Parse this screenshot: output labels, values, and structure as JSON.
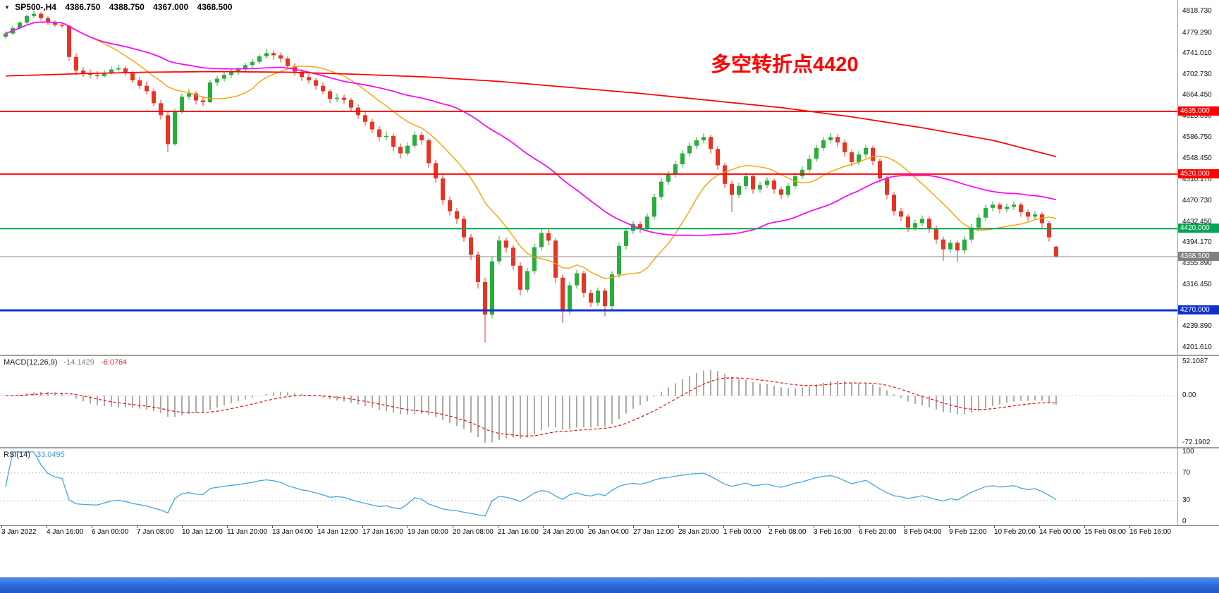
{
  "header": {
    "symbol": "SP500-,H4",
    "open": "4386.750",
    "high": "4388.750",
    "low": "4367.000",
    "close": "4368.500"
  },
  "annotation": {
    "text": "多空转折点4420",
    "color": "#ff0000"
  },
  "chart_data": {
    "type": "candlestick",
    "symbol": "SP500-",
    "timeframe": "H4",
    "colors": {
      "up": "#27ae3b",
      "down": "#ea3323",
      "macd_hist": "#ababab",
      "macd_signal": "#ff0000",
      "rsi_line": "#42a5e5"
    },
    "price_axis": {
      "ticks": [
        "4818.730",
        "4779.290",
        "4741.010",
        "4702.730",
        "4664.450",
        "4625.890",
        "4586.750",
        "4548.450",
        "4510.170",
        "4470.730",
        "4432.450",
        "4394.170",
        "4355.890",
        "4316.450",
        "4239.890",
        "4201.610"
      ]
    },
    "levels": [
      {
        "price": 4635.0,
        "label": "4635.000",
        "color": "#ff0000",
        "width": 2
      },
      {
        "price": 4520.0,
        "label": "4520.000",
        "color": "#ff0000",
        "width": 2
      },
      {
        "price": 4420.0,
        "label": "4420.000",
        "color": "#00a651",
        "width": 2
      },
      {
        "price": 4270.0,
        "label": "4270.000",
        "color": "#1032cc",
        "width": 3
      }
    ],
    "current_price": {
      "value": 4368.5,
      "label": "4368.500",
      "color": "#808080"
    },
    "candles": [
      [
        4772,
        4782,
        4768,
        4778
      ],
      [
        4778,
        4792,
        4775,
        4788
      ],
      [
        4788,
        4801,
        4785,
        4798
      ],
      [
        4798,
        4813,
        4795,
        4810
      ],
      [
        4810,
        4818.7,
        4806,
        4814
      ],
      [
        4814,
        4817,
        4802,
        4806
      ],
      [
        4806,
        4810,
        4794,
        4798
      ],
      [
        4798,
        4802,
        4790,
        4794
      ],
      [
        4794,
        4799,
        4788,
        4792
      ],
      [
        4792,
        4794,
        4728,
        4735
      ],
      [
        4735,
        4742,
        4702,
        4710
      ],
      [
        4710,
        4716,
        4698,
        4705
      ],
      [
        4705,
        4712,
        4696,
        4702
      ],
      [
        4702,
        4709,
        4694,
        4700
      ],
      [
        4700,
        4711,
        4697,
        4706
      ],
      [
        4706,
        4717,
        4702,
        4712
      ],
      [
        4712,
        4720,
        4708,
        4714
      ],
      [
        4714,
        4718,
        4700,
        4705
      ],
      [
        4705,
        4709,
        4687,
        4692
      ],
      [
        4692,
        4698,
        4676,
        4682
      ],
      [
        4682,
        4690,
        4666,
        4672
      ],
      [
        4672,
        4677,
        4644,
        4650
      ],
      [
        4650,
        4656,
        4620,
        4628
      ],
      [
        4628,
        4634,
        4560,
        4575
      ],
      [
        4575,
        4640,
        4572,
        4635
      ],
      [
        4635,
        4668,
        4630,
        4662
      ],
      [
        4662,
        4676,
        4656,
        4668
      ],
      [
        4668,
        4672,
        4648,
        4655
      ],
      [
        4655,
        4663,
        4645,
        4652
      ],
      [
        4652,
        4692,
        4650,
        4688
      ],
      [
        4688,
        4700,
        4682,
        4695
      ],
      [
        4695,
        4707,
        4690,
        4702
      ],
      [
        4702,
        4712,
        4696,
        4708
      ],
      [
        4708,
        4716,
        4702,
        4712
      ],
      [
        4712,
        4724,
        4707,
        4720
      ],
      [
        4720,
        4731,
        4715,
        4726
      ],
      [
        4726,
        4740,
        4722,
        4736
      ],
      [
        4736,
        4750,
        4731,
        4742
      ],
      [
        4742,
        4747,
        4730,
        4738
      ],
      [
        4738,
        4743,
        4725,
        4732
      ],
      [
        4732,
        4736,
        4712,
        4718
      ],
      [
        4718,
        4723,
        4701,
        4708
      ],
      [
        4708,
        4713,
        4691,
        4698
      ],
      [
        4698,
        4704,
        4686,
        4692
      ],
      [
        4692,
        4697,
        4675,
        4682
      ],
      [
        4682,
        4688,
        4666,
        4672
      ],
      [
        4672,
        4676,
        4650,
        4658
      ],
      [
        4658,
        4668,
        4652,
        4660
      ],
      [
        4660,
        4666,
        4649,
        4656
      ],
      [
        4656,
        4660,
        4635,
        4642
      ],
      [
        4642,
        4648,
        4621,
        4628
      ],
      [
        4628,
        4634,
        4609,
        4616
      ],
      [
        4616,
        4621,
        4595,
        4602
      ],
      [
        4602,
        4608,
        4580,
        4588
      ],
      [
        4588,
        4598,
        4582,
        4590
      ],
      [
        4590,
        4594,
        4562,
        4570
      ],
      [
        4570,
        4576,
        4549,
        4558
      ],
      [
        4558,
        4578,
        4554,
        4572
      ],
      [
        4572,
        4598,
        4568,
        4592
      ],
      [
        4592,
        4597,
        4574,
        4582
      ],
      [
        4582,
        4586,
        4532,
        4540
      ],
      [
        4540,
        4546,
        4504,
        4512
      ],
      [
        4512,
        4518,
        4464,
        4472
      ],
      [
        4472,
        4479,
        4444,
        4452
      ],
      [
        4452,
        4458,
        4428,
        4438
      ],
      [
        4438,
        4444,
        4396,
        4404
      ],
      [
        4404,
        4410,
        4362,
        4372
      ],
      [
        4372,
        4378,
        4310,
        4322
      ],
      [
        4322,
        4330,
        4211,
        4262
      ],
      [
        4262,
        4368,
        4256,
        4360
      ],
      [
        4360,
        4406,
        4354,
        4398
      ],
      [
        4398,
        4404,
        4376,
        4385
      ],
      [
        4385,
        4390,
        4344,
        4352
      ],
      [
        4352,
        4358,
        4298,
        4308
      ],
      [
        4308,
        4348,
        4302,
        4342
      ],
      [
        4342,
        4392,
        4336,
        4386
      ],
      [
        4386,
        4420,
        4380,
        4412
      ],
      [
        4412,
        4418,
        4390,
        4398
      ],
      [
        4398,
        4403,
        4320,
        4330
      ],
      [
        4330,
        4336,
        4247,
        4268
      ],
      [
        4268,
        4322,
        4262,
        4316
      ],
      [
        4316,
        4344,
        4310,
        4338
      ],
      [
        4338,
        4343,
        4294,
        4302
      ],
      [
        4302,
        4308,
        4276,
        4284
      ],
      [
        4284,
        4312,
        4278,
        4306
      ],
      [
        4306,
        4311,
        4259,
        4278
      ],
      [
        4278,
        4342,
        4272,
        4336
      ],
      [
        4336,
        4394,
        4330,
        4388
      ],
      [
        4388,
        4422,
        4382,
        4416
      ],
      [
        4416,
        4434,
        4410,
        4428
      ],
      [
        4428,
        4433,
        4412,
        4420
      ],
      [
        4420,
        4448,
        4415,
        4442
      ],
      [
        4442,
        4484,
        4436,
        4478
      ],
      [
        4478,
        4512,
        4472,
        4506
      ],
      [
        4506,
        4526,
        4500,
        4520
      ],
      [
        4520,
        4544,
        4514,
        4538
      ],
      [
        4538,
        4564,
        4532,
        4558
      ],
      [
        4558,
        4578,
        4552,
        4572
      ],
      [
        4572,
        4588,
        4566,
        4582
      ],
      [
        4582,
        4595,
        4576,
        4588
      ],
      [
        4588,
        4592,
        4558,
        4566
      ],
      [
        4566,
        4571,
        4528,
        4536
      ],
      [
        4536,
        4541,
        4494,
        4502
      ],
      [
        4502,
        4508,
        4450,
        4482
      ],
      [
        4482,
        4504,
        4476,
        4498
      ],
      [
        4498,
        4522,
        4492,
        4516
      ],
      [
        4516,
        4520,
        4484,
        4492
      ],
      [
        4492,
        4506,
        4486,
        4500
      ],
      [
        4500,
        4514,
        4494,
        4508
      ],
      [
        4508,
        4512,
        4484,
        4492
      ],
      [
        4492,
        4497,
        4474,
        4482
      ],
      [
        4482,
        4504,
        4477,
        4498
      ],
      [
        4498,
        4522,
        4493,
        4516
      ],
      [
        4516,
        4534,
        4511,
        4528
      ],
      [
        4528,
        4554,
        4523,
        4548
      ],
      [
        4548,
        4574,
        4543,
        4568
      ],
      [
        4568,
        4588,
        4563,
        4582
      ],
      [
        4582,
        4595,
        4576,
        4588
      ],
      [
        4588,
        4593,
        4570,
        4578
      ],
      [
        4578,
        4583,
        4552,
        4560
      ],
      [
        4560,
        4565,
        4534,
        4542
      ],
      [
        4542,
        4562,
        4537,
        4556
      ],
      [
        4556,
        4574,
        4550,
        4568
      ],
      [
        4568,
        4572,
        4536,
        4544
      ],
      [
        4544,
        4549,
        4504,
        4512
      ],
      [
        4512,
        4517,
        4474,
        4482
      ],
      [
        4482,
        4487,
        4444,
        4452
      ],
      [
        4452,
        4458,
        4434,
        4442
      ],
      [
        4442,
        4447,
        4414,
        4422
      ],
      [
        4422,
        4436,
        4416,
        4430
      ],
      [
        4430,
        4444,
        4424,
        4438
      ],
      [
        4438,
        4442,
        4412,
        4420
      ],
      [
        4420,
        4425,
        4392,
        4400
      ],
      [
        4400,
        4405,
        4361,
        4382
      ],
      [
        4382,
        4400,
        4376,
        4394
      ],
      [
        4394,
        4398,
        4359,
        4380
      ],
      [
        4380,
        4406,
        4374,
        4400
      ],
      [
        4400,
        4428,
        4394,
        4422
      ],
      [
        4422,
        4446,
        4416,
        4440
      ],
      [
        4440,
        4464,
        4434,
        4458
      ],
      [
        4458,
        4470,
        4452,
        4464
      ],
      [
        4464,
        4468,
        4448,
        4456
      ],
      [
        4456,
        4466,
        4450,
        4460
      ],
      [
        4460,
        4470,
        4454,
        4464
      ],
      [
        4464,
        4468,
        4442,
        4450
      ],
      [
        4450,
        4455,
        4434,
        4442
      ],
      [
        4442,
        4452,
        4436,
        4446
      ],
      [
        4446,
        4450,
        4422,
        4430
      ],
      [
        4430,
        4434,
        4396,
        4404
      ],
      [
        4386.75,
        4388.75,
        4367,
        4368.5
      ]
    ],
    "ma": {
      "orange_period": 13,
      "orange_color": "#ffa000",
      "magenta_period": 40,
      "magenta_color": "#ff00ff",
      "red_color": "#ff0000",
      "red_waypoints": [
        [
          0,
          4700
        ],
        [
          10,
          4704
        ],
        [
          20,
          4707
        ],
        [
          30,
          4708
        ],
        [
          40,
          4707
        ],
        [
          50,
          4703
        ],
        [
          60,
          4698
        ],
        [
          70,
          4690
        ],
        [
          80,
          4679
        ],
        [
          90,
          4668
        ],
        [
          100,
          4655
        ],
        [
          110,
          4642
        ],
        [
          120,
          4625
        ],
        [
          130,
          4605
        ],
        [
          140,
          4582
        ],
        [
          149,
          4552
        ]
      ]
    },
    "macd": {
      "name": "MACD(12,26,9)",
      "value_main": "-14.1429",
      "value_signal": "-6.0764",
      "fast": 12,
      "slow": 26,
      "signal": 9,
      "axis": [
        "52.1087",
        "0.00",
        "-72.1902"
      ]
    },
    "rsi": {
      "name": "RSI(14)",
      "value": "33.0495",
      "period": 14,
      "levels": [
        70,
        30
      ],
      "axis": [
        "100",
        "70",
        "30",
        "0"
      ],
      "color": "#42a5e5"
    },
    "time_axis": [
      "3 Jan 2022",
      "4 Jan 16:00",
      "6 Jan 00:00",
      "7 Jan 08:00",
      "10 Jan 12:00",
      "11 Jan 20:00",
      "13 Jan 04:00",
      "14 Jan 12:00",
      "17 Jan 16:00",
      "19 Jan 00:00",
      "20 Jan 08:00",
      "21 Jan 16:00",
      "24 Jan 20:00",
      "26 Jan 04:00",
      "27 Jan 12:00",
      "28 Jan 20:00",
      "1 Feb 00:00",
      "2 Feb 08:00",
      "3 Feb 16:00",
      "6 Feb 20:00",
      "8 Feb 04:00",
      "9 Feb 12:00",
      "10 Feb 20:00",
      "14 Feb 00:00",
      "15 Feb 08:00",
      "16 Feb 16:00"
    ]
  },
  "taskbar": {
    "color": "#2b6cd9"
  }
}
